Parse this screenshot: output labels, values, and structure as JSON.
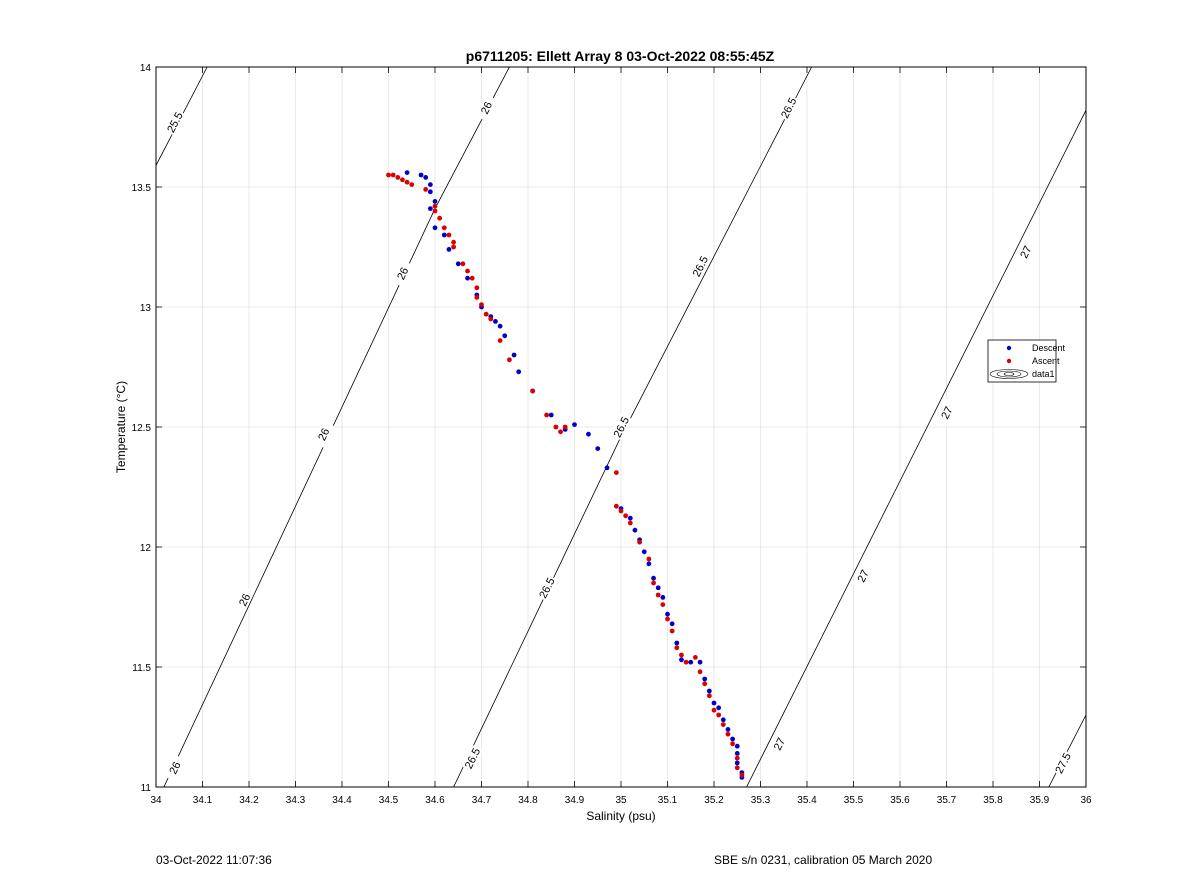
{
  "figure": {
    "footer_left": "03-Oct-2022 11:07:36",
    "footer_right": "SBE s/n 0231, calibration 05 March 2020"
  },
  "chart_data": {
    "type": "scatter",
    "title": "p6711205: Ellett Array 8 03-Oct-2022 08:55:45Z",
    "xlabel": "Salinity (psu)",
    "ylabel": "Temperature (°C)",
    "xlim": [
      34,
      36
    ],
    "ylim": [
      11,
      14
    ],
    "xticks": [
      "34",
      "34.1",
      "34.2",
      "34.3",
      "34.4",
      "34.5",
      "34.6",
      "34.7",
      "34.8",
      "34.9",
      "35",
      "35.1",
      "35.2",
      "35.3",
      "35.4",
      "35.5",
      "35.6",
      "35.7",
      "35.8",
      "35.9",
      "36"
    ],
    "yticks": [
      "11",
      "11.5",
      "12",
      "12.5",
      "13",
      "13.5",
      "14"
    ],
    "grid": true,
    "legend_position": "right",
    "legend": [
      {
        "name": "Descent",
        "color": "#0000cc",
        "marker": "dot"
      },
      {
        "name": "Ascent",
        "color": "#dd0000",
        "marker": "dot"
      },
      {
        "name": "data1",
        "color": "#000000",
        "marker": "contour"
      }
    ],
    "contours": [
      {
        "level": 25.5,
        "label": "25.5",
        "points": [
          [
            34.0,
            13.59
          ],
          [
            34.11,
            14.0
          ]
        ],
        "label_at": [
          [
            34.04,
            13.77
          ]
        ]
      },
      {
        "level": 26.0,
        "label": "26",
        "points": [
          [
            34.0,
            10.93
          ],
          [
            34.6,
            13.41
          ],
          [
            34.76,
            14.0
          ]
        ],
        "label_at": [
          [
            34.04,
            11.08
          ],
          [
            34.19,
            11.78
          ],
          [
            34.36,
            12.47
          ],
          [
            34.53,
            13.14
          ],
          [
            34.71,
            13.83
          ]
        ]
      },
      {
        "level": 26.5,
        "label": "26.5",
        "points": [
          [
            34.64,
            11.0
          ],
          [
            35.0,
            12.46
          ],
          [
            35.41,
            14.0
          ]
        ],
        "label_at": [
          [
            34.68,
            11.12
          ],
          [
            34.84,
            11.83
          ],
          [
            35.0,
            12.5
          ],
          [
            35.17,
            13.17
          ],
          [
            35.36,
            13.83
          ]
        ]
      },
      {
        "level": 27.0,
        "label": "27",
        "points": [
          [
            35.27,
            11.0
          ],
          [
            36.0,
            13.82
          ]
        ],
        "label_at": [
          [
            35.34,
            11.18
          ],
          [
            35.52,
            11.88
          ],
          [
            35.7,
            12.56
          ],
          [
            35.87,
            13.23
          ]
        ]
      },
      {
        "level": 27.5,
        "label": "27.5",
        "points": [
          [
            35.92,
            11.0
          ],
          [
            36.0,
            11.3
          ]
        ],
        "label_at": [
          [
            35.95,
            11.1
          ]
        ]
      }
    ],
    "series": [
      {
        "name": "Descent",
        "color": "#0000cc",
        "points": [
          [
            34.54,
            13.56
          ],
          [
            34.57,
            13.55
          ],
          [
            34.58,
            13.54
          ],
          [
            34.59,
            13.51
          ],
          [
            34.59,
            13.48
          ],
          [
            34.6,
            13.44
          ],
          [
            34.59,
            13.41
          ],
          [
            34.6,
            13.33
          ],
          [
            34.62,
            13.3
          ],
          [
            34.63,
            13.24
          ],
          [
            34.65,
            13.18
          ],
          [
            34.67,
            13.12
          ],
          [
            34.69,
            13.05
          ],
          [
            34.7,
            13.0
          ],
          [
            34.72,
            12.96
          ],
          [
            34.73,
            12.94
          ],
          [
            34.74,
            12.92
          ],
          [
            34.75,
            12.88
          ],
          [
            34.77,
            12.8
          ],
          [
            34.78,
            12.73
          ],
          [
            34.81,
            12.65
          ],
          [
            34.85,
            12.55
          ],
          [
            34.88,
            12.49
          ],
          [
            34.9,
            12.51
          ],
          [
            34.93,
            12.47
          ],
          [
            34.95,
            12.41
          ],
          [
            34.97,
            12.33
          ],
          [
            35.0,
            12.16
          ],
          [
            35.02,
            12.12
          ],
          [
            35.03,
            12.07
          ],
          [
            35.04,
            12.03
          ],
          [
            35.05,
            11.98
          ],
          [
            35.06,
            11.93
          ],
          [
            35.07,
            11.87
          ],
          [
            35.08,
            11.83
          ],
          [
            35.09,
            11.79
          ],
          [
            35.1,
            11.72
          ],
          [
            35.11,
            11.68
          ],
          [
            35.12,
            11.6
          ],
          [
            35.13,
            11.53
          ],
          [
            35.15,
            11.52
          ],
          [
            35.17,
            11.52
          ],
          [
            35.18,
            11.45
          ],
          [
            35.19,
            11.4
          ],
          [
            35.2,
            11.35
          ],
          [
            35.21,
            11.33
          ],
          [
            35.22,
            11.28
          ],
          [
            35.23,
            11.24
          ],
          [
            35.24,
            11.2
          ],
          [
            35.25,
            11.17
          ],
          [
            35.25,
            11.14
          ],
          [
            35.25,
            11.1
          ],
          [
            35.26,
            11.06
          ],
          [
            35.26,
            11.04
          ]
        ]
      },
      {
        "name": "Ascent",
        "color": "#dd0000",
        "points": [
          [
            34.5,
            13.55
          ],
          [
            34.51,
            13.55
          ],
          [
            34.52,
            13.54
          ],
          [
            34.53,
            13.53
          ],
          [
            34.54,
            13.52
          ],
          [
            34.55,
            13.51
          ],
          [
            34.58,
            13.49
          ],
          [
            34.6,
            13.42
          ],
          [
            34.6,
            13.4
          ],
          [
            34.61,
            13.37
          ],
          [
            34.62,
            13.33
          ],
          [
            34.63,
            13.3
          ],
          [
            34.64,
            13.27
          ],
          [
            34.64,
            13.25
          ],
          [
            34.66,
            13.18
          ],
          [
            34.67,
            13.15
          ],
          [
            34.68,
            13.12
          ],
          [
            34.69,
            13.08
          ],
          [
            34.69,
            13.04
          ],
          [
            34.7,
            13.01
          ],
          [
            34.71,
            12.97
          ],
          [
            34.72,
            12.95
          ],
          [
            34.74,
            12.86
          ],
          [
            34.76,
            12.78
          ],
          [
            34.81,
            12.65
          ],
          [
            34.84,
            12.55
          ],
          [
            34.86,
            12.5
          ],
          [
            34.87,
            12.48
          ],
          [
            34.88,
            12.5
          ],
          [
            34.99,
            12.31
          ],
          [
            34.99,
            12.17
          ],
          [
            35.0,
            12.15
          ],
          [
            35.01,
            12.13
          ],
          [
            35.02,
            12.1
          ],
          [
            35.04,
            12.02
          ],
          [
            35.06,
            11.95
          ],
          [
            35.07,
            11.85
          ],
          [
            35.08,
            11.8
          ],
          [
            35.09,
            11.76
          ],
          [
            35.1,
            11.7
          ],
          [
            35.11,
            11.65
          ],
          [
            35.12,
            11.58
          ],
          [
            35.13,
            11.55
          ],
          [
            35.14,
            11.52
          ],
          [
            35.16,
            11.54
          ],
          [
            35.17,
            11.48
          ],
          [
            35.18,
            11.43
          ],
          [
            35.19,
            11.38
          ],
          [
            35.2,
            11.32
          ],
          [
            35.21,
            11.3
          ],
          [
            35.22,
            11.26
          ],
          [
            35.23,
            11.22
          ],
          [
            35.24,
            11.18
          ],
          [
            35.25,
            11.12
          ],
          [
            35.25,
            11.08
          ],
          [
            35.26,
            11.05
          ]
        ]
      }
    ]
  }
}
